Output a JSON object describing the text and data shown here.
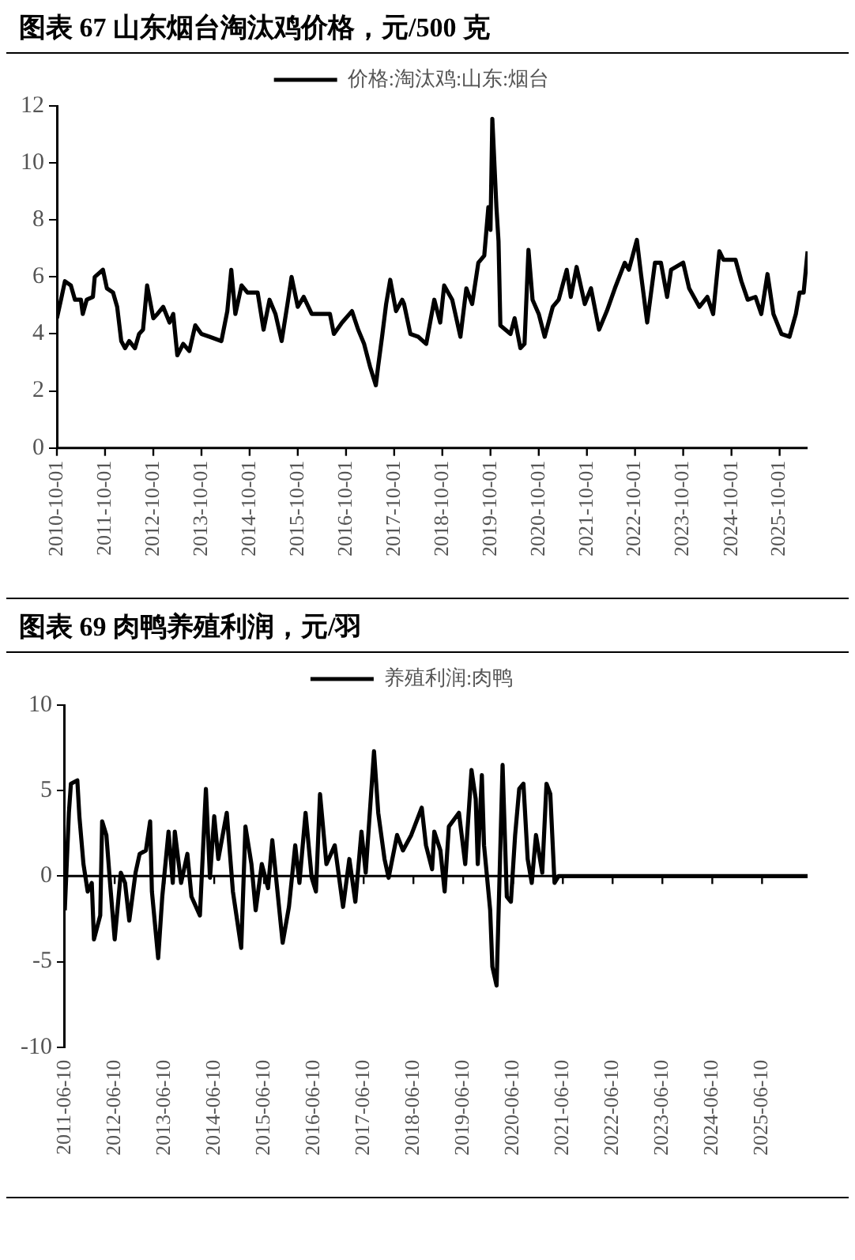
{
  "chart_data": [
    {
      "type": "line",
      "title": "图表 67  山东烟台淘汰鸡价格，元/500 克",
      "legend": "top",
      "marker": "none",
      "x": [
        "2010-10-01",
        "2010-11-01",
        "2010-12-01",
        "2011-01-15",
        "2011-02-15",
        "2011-04-01",
        "2011-04-15",
        "2011-05-15",
        "2011-07-01",
        "2011-07-15",
        "2011-09-15",
        "2011-10-15",
        "2011-12-01",
        "2012-01-01",
        "2012-02-01",
        "2012-03-01",
        "2012-04-01",
        "2012-05-15",
        "2012-06-15",
        "2012-07-15",
        "2012-08-15",
        "2012-10-01",
        "2012-11-01",
        "2012-12-15",
        "2013-02-01",
        "2013-03-01",
        "2013-04-01",
        "2013-05-15",
        "2013-07-01",
        "2013-08-15",
        "2013-10-01",
        "2013-12-01",
        "2014-03-01",
        "2014-04-15",
        "2014-05-15",
        "2014-06-15",
        "2014-08-01",
        "2014-09-15",
        "2014-12-01",
        "2015-01-15",
        "2015-03-01",
        "2015-04-15",
        "2015-06-01",
        "2015-07-15",
        "2015-08-15",
        "2015-10-01",
        "2015-11-15",
        "2016-01-15",
        "2016-06-01",
        "2016-07-01",
        "2016-09-01",
        "2016-11-15",
        "2017-01-01",
        "2017-02-15",
        "2017-04-01",
        "2017-05-15",
        "2017-06-01",
        "2017-07-01",
        "2017-08-01",
        "2017-09-01",
        "2017-10-15",
        "2017-12-01",
        "2017-12-15",
        "2018-02-01",
        "2018-04-01",
        "2018-06-01",
        "2018-08-01",
        "2018-09-15",
        "2018-10-15",
        "2018-12-15",
        "2019-02-15",
        "2019-04-01",
        "2019-05-15",
        "2019-07-01",
        "2019-08-15",
        "2019-09-15",
        "2019-10-01",
        "2019-10-15",
        "2019-11-15",
        "2019-12-01",
        "2019-12-15",
        "2020-03-01",
        "2020-04-01",
        "2020-05-15",
        "2020-06-15",
        "2020-07-15",
        "2020-08-15",
        "2020-10-01",
        "2020-11-15",
        "2021-01-15",
        "2021-03-01",
        "2021-05-01",
        "2021-06-01",
        "2021-07-15",
        "2021-09-15",
        "2021-11-01",
        "2022-01-01",
        "2022-03-01",
        "2022-05-01",
        "2022-07-15",
        "2022-08-15",
        "2022-10-15",
        "2022-11-15",
        "2023-01-01",
        "2023-03-01",
        "2023-04-15",
        "2023-06-01",
        "2023-07-01",
        "2023-10-01",
        "2023-11-15",
        "2024-02-01",
        "2024-04-01",
        "2024-05-15",
        "2024-07-01",
        "2024-08-01",
        "2024-11-01",
        "2024-12-15",
        "2025-02-01",
        "2025-04-01",
        "2025-05-15",
        "2025-07-01",
        "2025-08-15",
        "2025-10-15",
        "2025-12-15",
        "2026-02-01",
        "2026-03-01",
        "2026-04-01",
        "2026-05-01"
      ],
      "series": [
        {
          "name": "价格:淘汰鸡:山东:烟台",
          "color": "#000000",
          "values": [
            4.55,
            5.2,
            5.85,
            5.7,
            5.2,
            5.2,
            4.7,
            5.2,
            5.3,
            6,
            6.25,
            5.6,
            5.45,
            4.95,
            3.75,
            3.5,
            3.75,
            3.5,
            4,
            4.15,
            5.7,
            4.55,
            4.7,
            4.95,
            4.4,
            4.7,
            3.25,
            3.65,
            3.4,
            4.3,
            4,
            3.9,
            3.75,
            4.8,
            6.25,
            4.7,
            5.7,
            5.45,
            5.45,
            4.15,
            5.2,
            4.7,
            3.75,
            5.05,
            6,
            4.95,
            5.3,
            4.7,
            4.7,
            4,
            4.4,
            4.8,
            4.15,
            3.65,
            2.85,
            2.2,
            2.85,
            3.9,
            5.05,
            5.9,
            4.8,
            5.2,
            5.05,
            4,
            3.9,
            3.65,
            5.2,
            4.4,
            5.7,
            5.2,
            3.9,
            5.6,
            5.05,
            6.5,
            6.75,
            8.45,
            7.65,
            11.55,
            8.45,
            7.25,
            4.3,
            4,
            4.55,
            3.5,
            3.65,
            6.95,
            5.2,
            4.7,
            3.9,
            4.95,
            5.2,
            6.25,
            5.3,
            6.35,
            5.05,
            5.6,
            4.15,
            4.8,
            5.6,
            6.5,
            6.25,
            7.3,
            6.1,
            4.4,
            6.5,
            6.5,
            5.3,
            6.25,
            6.5,
            5.6,
            4.95,
            5.3,
            4.7,
            6.9,
            6.6,
            6.6,
            5.85,
            5.2,
            5.3,
            4.7,
            6.1,
            4.7,
            4,
            3.9,
            4.7,
            5.45,
            5.45,
            6.9
          ]
        }
      ],
      "xlim": [
        "2010-10-01",
        "2026-05-01"
      ],
      "xticks": [
        "2010-10-01",
        "2011-10-01",
        "2012-10-01",
        "2013-10-01",
        "2014-10-01",
        "2015-10-01",
        "2016-10-01",
        "2017-10-01",
        "2018-10-01",
        "2019-10-01",
        "2020-10-01",
        "2021-10-01",
        "2022-10-01",
        "2023-10-01",
        "2024-10-01",
        "2025-10-01"
      ],
      "ylim": [
        0,
        12
      ],
      "yticks": [
        0,
        2,
        4,
        6,
        8,
        10,
        12
      ]
    },
    {
      "type": "line",
      "title": "图表 69 肉鸭养殖利润，元/羽",
      "legend": "top",
      "marker": "none",
      "x": [
        "2011-06-10",
        "2011-07-10",
        "2011-07-25",
        "2011-09-10",
        "2011-09-25",
        "2011-10-25",
        "2011-11-25",
        "2011-12-25",
        "2012-01-10",
        "2012-02-25",
        "2012-03-10",
        "2012-04-10",
        "2012-05-10",
        "2012-06-10",
        "2012-07-25",
        "2012-08-25",
        "2012-09-25",
        "2012-11-10",
        "2012-12-10",
        "2013-01-25",
        "2013-02-25",
        "2013-03-10",
        "2013-04-25",
        "2013-05-25",
        "2013-07-10",
        "2013-08-10",
        "2013-08-25",
        "2013-10-10",
        "2013-11-25",
        "2013-12-25",
        "2014-02-25",
        "2014-04-10",
        "2014-05-10",
        "2014-06-10",
        "2014-07-10",
        "2014-09-10",
        "2014-10-25",
        "2014-12-25",
        "2015-01-25",
        "2015-03-10",
        "2015-04-10",
        "2015-05-25",
        "2015-07-10",
        "2015-08-10",
        "2015-10-25",
        "2015-12-10",
        "2016-01-25",
        "2016-02-25",
        "2016-04-10",
        "2016-05-25",
        "2016-06-25",
        "2016-07-25",
        "2016-09-10",
        "2016-11-10",
        "2017-01-10",
        "2017-02-25",
        "2017-04-10",
        "2017-05-25",
        "2017-06-25",
        "2017-08-25",
        "2017-09-25",
        "2017-11-10",
        "2017-12-10",
        "2018-02-10",
        "2018-03-25",
        "2018-05-25",
        "2018-08-10",
        "2018-09-10",
        "2018-10-25",
        "2018-11-10",
        "2018-12-25",
        "2019-01-25",
        "2019-02-25",
        "2019-05-10",
        "2019-06-25",
        "2019-08-10",
        "2019-09-10",
        "2019-09-25",
        "2019-10-25",
        "2019-11-10",
        "2019-12-25",
        "2020-01-10",
        "2020-02-10",
        "2020-03-25",
        "2020-04-25",
        "2020-05-25",
        "2020-06-25",
        "2020-07-25",
        "2020-08-25",
        "2020-09-25",
        "2020-10-25",
        "2020-11-25",
        "2021-01-10",
        "2021-02-10",
        "2021-03-10",
        "2021-04-10",
        "2021-05-10",
        "2026-05-10"
      ],
      "series": [
        {
          "name": "养殖利润:肉鸭",
          "color": "#000000",
          "values": [
            -2,
            3.7,
            5.4,
            5.6,
            3.5,
            0.7,
            -0.9,
            -0.4,
            -3.7,
            -2.3,
            3.2,
            2.4,
            -0.7,
            -3.7,
            0.2,
            -0.4,
            -2.6,
            0.2,
            1.3,
            1.5,
            3.2,
            -0.9,
            -4.8,
            -1.2,
            2.6,
            -0.4,
            2.6,
            -0.4,
            1.3,
            -1.2,
            -2.3,
            5.1,
            -0.1,
            3.5,
            1,
            3.7,
            -0.9,
            -4.2,
            2.9,
            0.7,
            -2,
            0.7,
            -0.7,
            2.1,
            -3.9,
            -1.8,
            1.8,
            -0.4,
            3.7,
            -0.1,
            -0.9,
            4.8,
            0.7,
            1.8,
            -1.8,
            1,
            -1.5,
            2.6,
            0.2,
            7.3,
            3.7,
            1,
            -0.1,
            2.4,
            1.5,
            2.4,
            4,
            1.8,
            0.4,
            2.6,
            1.5,
            -0.9,
            2.9,
            3.7,
            0.7,
            6.2,
            4.5,
            0.7,
            5.9,
            1.8,
            -2,
            -5.3,
            -6.4,
            6.5,
            -1.2,
            -1.5,
            2.4,
            5.1,
            5.4,
            1,
            -0.4,
            2.4,
            0.2,
            5.4,
            4.8,
            -0.4,
            0,
            0
          ]
        }
      ],
      "xlim": [
        "2011-06-10",
        "2026-05-10"
      ],
      "xticks": [
        "2011-06-10",
        "2012-06-10",
        "2013-06-10",
        "2014-06-10",
        "2015-06-10",
        "2016-06-10",
        "2017-06-10",
        "2018-06-10",
        "2019-06-10",
        "2020-06-10",
        "2021-06-10",
        "2022-06-10",
        "2023-06-10",
        "2024-06-10",
        "2025-06-10"
      ],
      "ylim": [
        -10,
        10
      ],
      "yticks": [
        -10,
        -5,
        0,
        5,
        10
      ]
    }
  ]
}
